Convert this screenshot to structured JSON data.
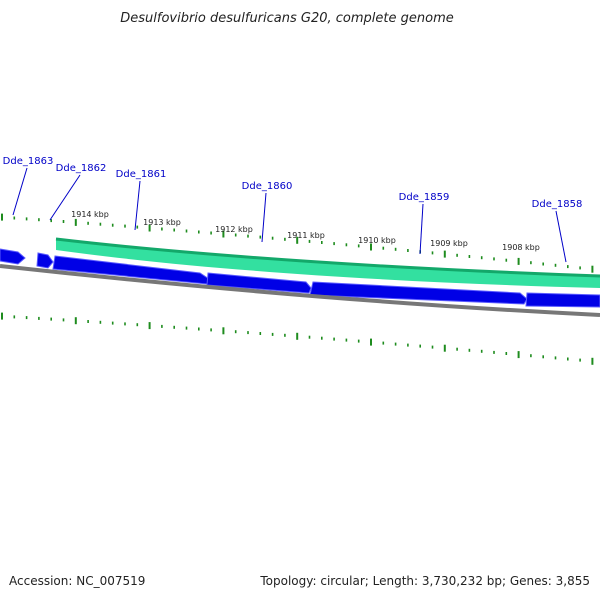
{
  "title": "Desulfovibrio desulfuricans G20, complete genome",
  "footer": {
    "accession": "Accession: NC_007519",
    "summary": "Topology: circular; Length: 3,730,232 bp; Genes: 3,855"
  },
  "scale_labels": [
    "1914 kbp",
    "1913 kbp",
    "1912 kbp",
    "1911 kbp",
    "1910 kbp",
    "1909 kbp",
    "1908 kbp"
  ],
  "genes": [
    "Dde_1863",
    "Dde_1862",
    "Dde_1861",
    "Dde_1860",
    "Dde_1859",
    "Dde_1858"
  ],
  "colors": {
    "cds": "#0000e6",
    "cds_highlight": "#5a5aff",
    "gc_band": "#33e0a0",
    "gc_band_edge": "#13a86a",
    "tick": "#1e8c1e",
    "backbone": "#777777",
    "gene_label": "#0000c8"
  }
}
